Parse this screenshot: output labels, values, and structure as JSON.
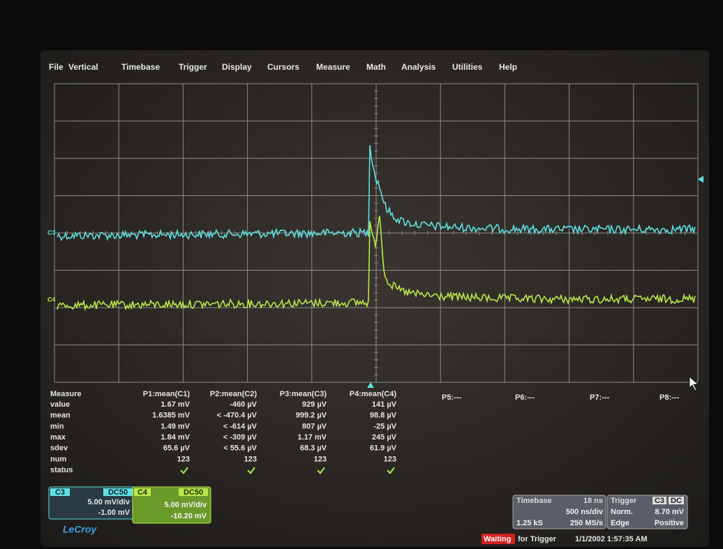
{
  "menu": [
    "File",
    "Vertical",
    "Timebase",
    "Trigger",
    "Display",
    "Cursors",
    "Measure",
    "Math",
    "Analysis",
    "Utilities",
    "Help"
  ],
  "measure": {
    "title": "Measure",
    "row_labels": [
      "value",
      "mean",
      "min",
      "max",
      "sdev",
      "num",
      "status"
    ],
    "columns": [
      {
        "header": "P1:mean(C1)",
        "values": [
          "1.67 mV",
          "1.6385 mV",
          "1.49 mV",
          "1.84 mV",
          "65.6 µV",
          "123"
        ]
      },
      {
        "header": "P2:mean(C2)",
        "values": [
          "-460 µV",
          "< -470.4 µV",
          "< -614 µV",
          "< -309 µV",
          "< 55.6 µV",
          "123"
        ]
      },
      {
        "header": "P3:mean(C3)",
        "values": [
          "929 µV",
          "999.2 µV",
          "807 µV",
          "1.17 mV",
          "68.3 µV",
          "123"
        ]
      },
      {
        "header": "P4:mean(C4)",
        "values": [
          "141 µV",
          "98.8 µV",
          "-25 µV",
          "245 µV",
          "61.9 µV",
          "123"
        ]
      }
    ],
    "empty_columns": [
      "P5:---",
      "P6:---",
      "P7:---",
      "P8:---"
    ]
  },
  "channels": [
    {
      "label": "C3",
      "coupling": "DC50",
      "scale": "5.00 mV/div",
      "offset": "-1.00 mV"
    },
    {
      "label": "C4",
      "coupling": "DC50",
      "scale": "5.00 mV/div",
      "offset": "-10.20 mV"
    }
  ],
  "logo": "LeCroy",
  "timebase": {
    "title": "Timebase",
    "delay": "18 ns",
    "scale": "500 ns/div",
    "samples": "1.25 kS",
    "rate": "250 MS/s"
  },
  "trigger": {
    "title": "Trigger",
    "source": "C3",
    "coupling": "DC",
    "mode": "Norm.",
    "level": "8.70 mV",
    "type": "Edge",
    "slope": "Positive"
  },
  "status": {
    "state": "Waiting",
    "message": "for Trigger",
    "datetime": "1/1/2002 1:57:35 AM"
  }
}
